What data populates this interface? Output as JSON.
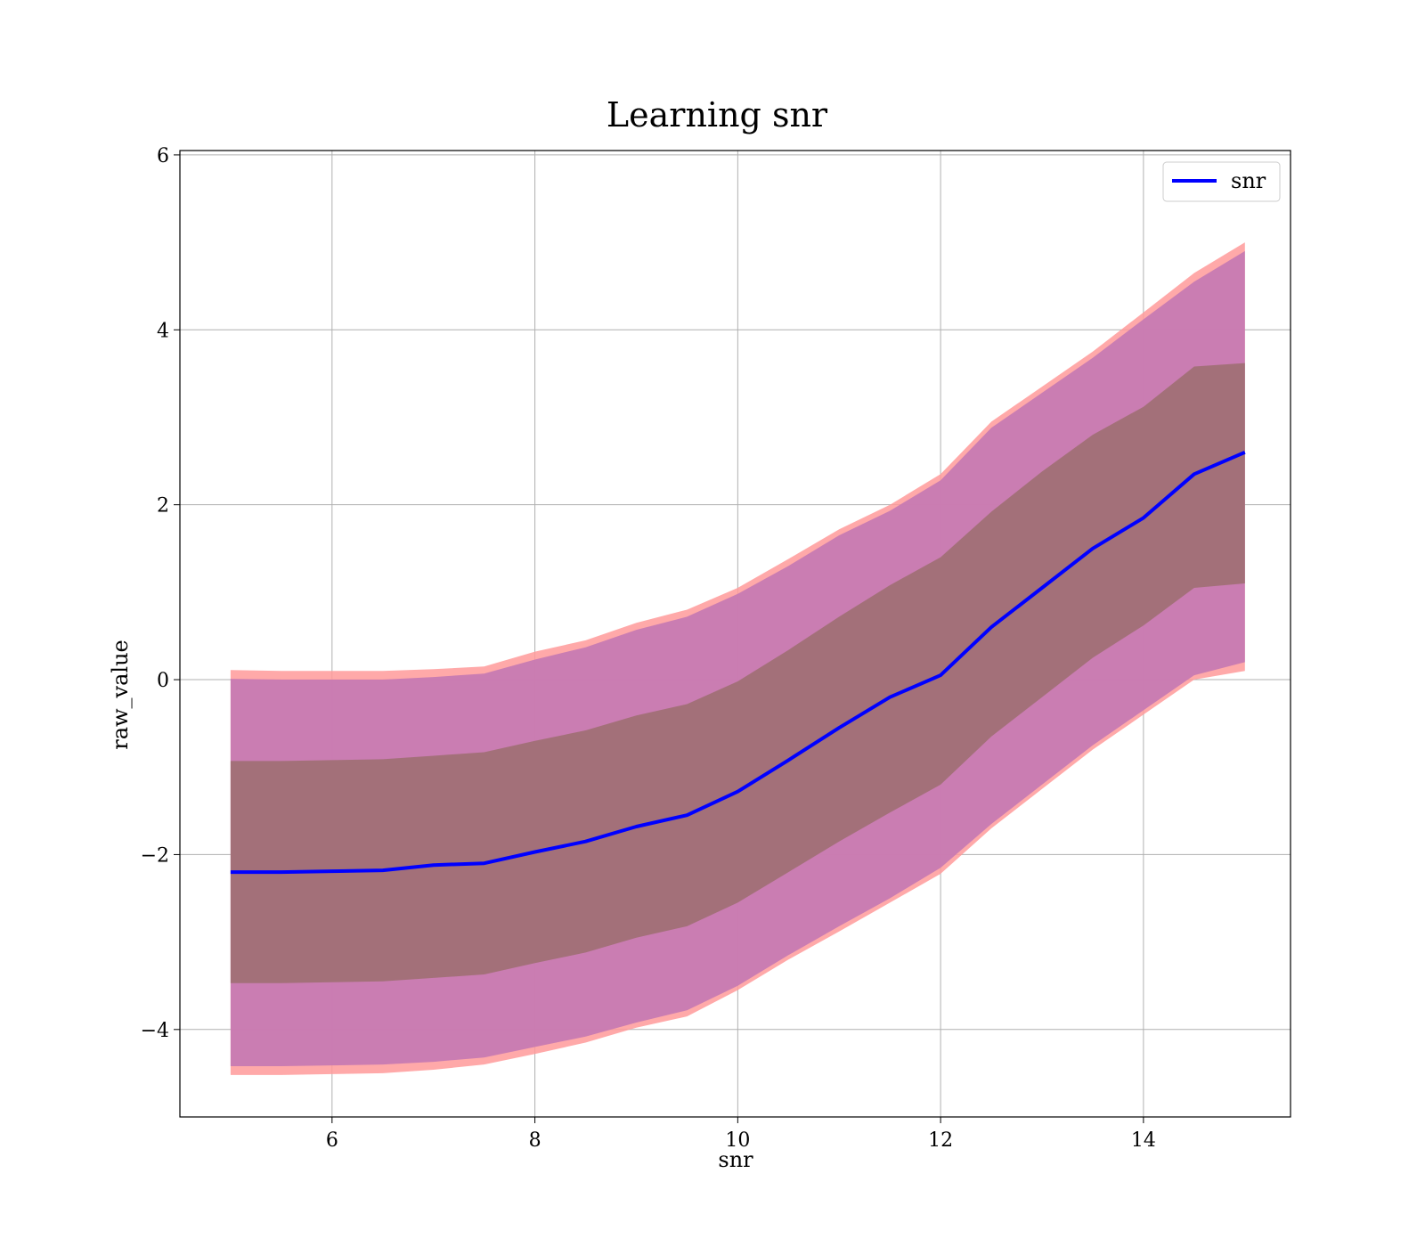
{
  "chart_data": {
    "type": "line",
    "title": "Learning snr",
    "xlabel": "snr",
    "ylabel": "raw_value",
    "xlim": [
      4.5,
      15.45
    ],
    "ylim": [
      -5.0,
      6.05
    ],
    "xticks": [
      6,
      8,
      10,
      12,
      14
    ],
    "yticks": [
      -4,
      -2,
      0,
      2,
      4,
      6
    ],
    "xtick_labels": [
      "6",
      "8",
      "10",
      "12",
      "14"
    ],
    "ytick_labels": [
      "−4",
      "−2",
      "0",
      "2",
      "4",
      "6"
    ],
    "grid": true,
    "legend": {
      "placement": "top-right",
      "entries": [
        "snr"
      ]
    },
    "colors": {
      "line": "#0000ff",
      "outer_band": "#ff9a9a",
      "middle_band": "#c77ab2",
      "inner_band": "#a07076"
    },
    "series": [
      {
        "name": "snr",
        "x": [
          5.0,
          5.5,
          6.0,
          6.5,
          7.0,
          7.5,
          8.0,
          8.5,
          9.0,
          9.5,
          10.0,
          10.5,
          11.0,
          11.5,
          12.0,
          12.5,
          13.0,
          13.5,
          14.0,
          14.5,
          15.0
        ],
        "y": [
          -2.2,
          -2.2,
          -2.19,
          -2.18,
          -2.12,
          -2.1,
          -1.97,
          -1.85,
          -1.68,
          -1.55,
          -1.28,
          -0.92,
          -0.55,
          -0.2,
          0.05,
          0.6,
          1.05,
          1.5,
          1.85,
          2.35,
          2.6
        ]
      }
    ],
    "bands": [
      {
        "x": [
          5.0,
          5.5,
          6.0,
          6.5,
          7.0,
          7.5,
          8.0,
          8.5,
          9.0,
          9.5,
          10.0,
          10.5,
          11.0,
          11.5,
          12.0,
          12.5,
          13.0,
          13.5,
          14.0,
          14.5,
          15.0
        ],
        "lower": [
          -4.52,
          -4.52,
          -4.51,
          -4.5,
          -4.46,
          -4.4,
          -4.28,
          -4.15,
          -3.98,
          -3.85,
          -3.55,
          -3.2,
          -2.88,
          -2.55,
          -2.22,
          -1.7,
          -1.25,
          -0.8,
          -0.4,
          0.0,
          0.1
        ],
        "upper": [
          0.11,
          0.1,
          0.1,
          0.1,
          0.12,
          0.15,
          0.32,
          0.45,
          0.65,
          0.8,
          1.05,
          1.38,
          1.72,
          2.0,
          2.35,
          2.95,
          3.35,
          3.75,
          4.2,
          4.65,
          5.0
        ]
      },
      {
        "x": [
          5.0,
          5.5,
          6.0,
          6.5,
          7.0,
          7.5,
          8.0,
          8.5,
          9.0,
          9.5,
          10.0,
          10.5,
          11.0,
          11.5,
          12.0,
          12.5,
          13.0,
          13.5,
          14.0,
          14.5,
          15.0
        ],
        "lower": [
          -4.42,
          -4.42,
          -4.41,
          -4.4,
          -4.37,
          -4.32,
          -4.2,
          -4.08,
          -3.92,
          -3.78,
          -3.5,
          -3.15,
          -2.82,
          -2.5,
          -2.15,
          -1.65,
          -1.2,
          -0.75,
          -0.35,
          0.05,
          0.2
        ],
        "upper": [
          0.01,
          0.0,
          0.0,
          0.0,
          0.03,
          0.07,
          0.23,
          0.37,
          0.57,
          0.72,
          0.98,
          1.3,
          1.65,
          1.93,
          2.28,
          2.88,
          3.28,
          3.68,
          4.12,
          4.55,
          4.9
        ]
      },
      {
        "x": [
          5.0,
          5.5,
          6.0,
          6.5,
          7.0,
          7.5,
          8.0,
          8.5,
          9.0,
          9.5,
          10.0,
          10.5,
          11.0,
          11.5,
          12.0,
          12.5,
          13.0,
          13.5,
          14.0,
          14.5,
          15.0
        ],
        "lower": [
          -3.47,
          -3.47,
          -3.46,
          -3.45,
          -3.41,
          -3.37,
          -3.24,
          -3.12,
          -2.95,
          -2.82,
          -2.55,
          -2.2,
          -1.85,
          -1.52,
          -1.2,
          -0.65,
          -0.2,
          0.25,
          0.62,
          1.05,
          1.1
        ],
        "upper": [
          -0.93,
          -0.93,
          -0.92,
          -0.91,
          -0.87,
          -0.83,
          -0.7,
          -0.58,
          -0.41,
          -0.28,
          -0.02,
          0.34,
          0.72,
          1.08,
          1.4,
          1.92,
          2.38,
          2.8,
          3.12,
          3.58,
          3.62
        ]
      }
    ]
  }
}
